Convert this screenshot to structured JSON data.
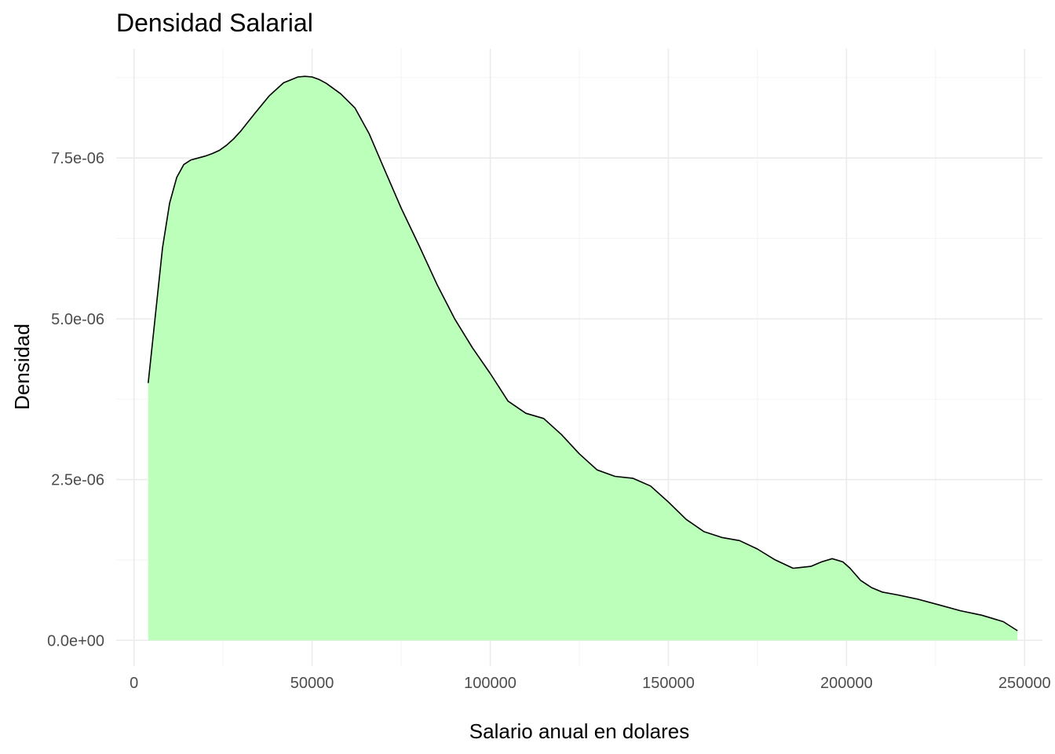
{
  "chart_data": {
    "type": "area",
    "title": "Densidad Salarial",
    "xlabel": "Salario anual en dolares",
    "ylabel": "Densidad",
    "xlim": [
      -5000,
      255000
    ],
    "ylim": [
      -4e-07,
      9.2e-06
    ],
    "x_ticks": [
      0,
      50000,
      100000,
      150000,
      200000,
      250000
    ],
    "x_tick_labels": [
      "0",
      "50000",
      "100000",
      "150000",
      "200000",
      "250000"
    ],
    "y_ticks": [
      0,
      2.5e-06,
      5e-06,
      7.5e-06
    ],
    "y_tick_labels": [
      "0.0e+00",
      "2.5e-06",
      "5.0e-06",
      "7.5e-06"
    ],
    "grid": true,
    "legend": "none",
    "fill_color": "#bbffbb",
    "line_color": "#000000",
    "series": [
      {
        "x": [
          4000,
          6000,
          8000,
          10000,
          12000,
          14000,
          16000,
          18000,
          20000,
          22000,
          24000,
          26000,
          28000,
          30000,
          34000,
          38000,
          42000,
          46000,
          48000,
          50000,
          52000,
          54000,
          58000,
          62000,
          66000,
          70000,
          75000,
          80000,
          85000,
          90000,
          95000,
          100000,
          105000,
          110000,
          115000,
          120000,
          125000,
          130000,
          135000,
          140000,
          145000,
          150000,
          155000,
          160000,
          165000,
          170000,
          175000,
          180000,
          185000,
          190000,
          193000,
          196000,
          199000,
          201000,
          204000,
          207000,
          210000,
          214000,
          220000,
          226000,
          232000,
          238000,
          244000,
          248000
        ],
        "y": [
          4e-06,
          5.05e-06,
          6.1e-06,
          6.8e-06,
          7.2e-06,
          7.4e-06,
          7.47e-06,
          7.5e-06,
          7.53e-06,
          7.57e-06,
          7.62e-06,
          7.7e-06,
          7.8e-06,
          7.92e-06,
          8.2e-06,
          8.47e-06,
          8.67e-06,
          8.76e-06,
          8.77e-06,
          8.76e-06,
          8.72e-06,
          8.66e-06,
          8.5e-06,
          8.28e-06,
          7.88e-06,
          7.36e-06,
          6.72e-06,
          6.14e-06,
          5.54e-06,
          5e-06,
          4.55e-06,
          4.15e-06,
          3.72e-06,
          3.53e-06,
          3.45e-06,
          3.2e-06,
          2.9e-06,
          2.65e-06,
          2.55e-06,
          2.52e-06,
          2.4e-06,
          2.15e-06,
          1.88e-06,
          1.69e-06,
          1.6e-06,
          1.55e-06,
          1.42e-06,
          1.25e-06,
          1.12e-06,
          1.15e-06,
          1.22e-06,
          1.27e-06,
          1.22e-06,
          1.12e-06,
          9.3e-07,
          8.2e-07,
          7.5e-07,
          7.1e-07,
          6.4e-07,
          5.5e-07,
          4.6e-07,
          3.9e-07,
          2.9e-07,
          1.5e-07
        ]
      }
    ]
  }
}
